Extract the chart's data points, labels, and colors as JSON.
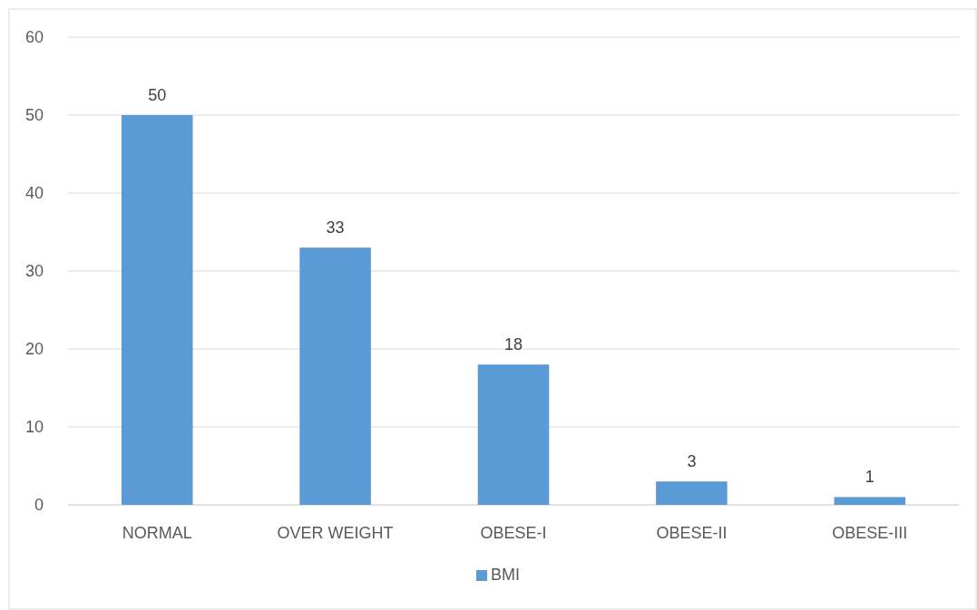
{
  "chart_data": {
    "type": "bar",
    "categories": [
      "NORMAL",
      "OVER WEIGHT",
      "OBESE-I",
      "OBESE-II",
      "OBESE-III"
    ],
    "series": [
      {
        "name": "BMI",
        "color": "#5b9bd5",
        "values": [
          50,
          33,
          18,
          3,
          1
        ]
      }
    ],
    "ylim": [
      0,
      60
    ],
    "yticks": [
      0,
      10,
      20,
      30,
      40,
      50,
      60
    ],
    "grid": "y",
    "legend": "bottom",
    "data_labels": true
  }
}
